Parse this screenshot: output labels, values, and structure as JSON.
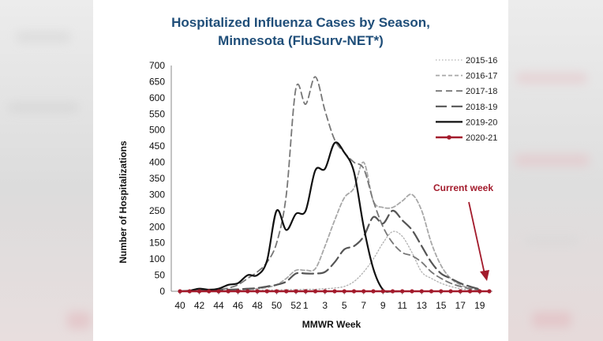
{
  "chart_data": {
    "type": "line",
    "title_line1": "Hospitalized Influenza Cases by Season,",
    "title_line2": "Minnesota (FluSurv-NET*)",
    "xlabel": "MMWR Week",
    "ylabel": "Number of Hospitalizations",
    "ylim": [
      0,
      700
    ],
    "yticks": [
      0,
      50,
      100,
      150,
      200,
      250,
      300,
      350,
      400,
      450,
      500,
      550,
      600,
      650,
      700
    ],
    "xtick_labels": [
      "40",
      "42",
      "44",
      "46",
      "48",
      "50",
      "52",
      "1",
      "3",
      "5",
      "7",
      "9",
      "11",
      "13",
      "15",
      "17",
      "19"
    ],
    "weeks": [
      "40",
      "41",
      "42",
      "43",
      "44",
      "45",
      "46",
      "47",
      "48",
      "49",
      "50",
      "51",
      "52",
      "1",
      "2",
      "3",
      "4",
      "5",
      "6",
      "7",
      "8",
      "9",
      "10",
      "11",
      "12",
      "13",
      "14",
      "15",
      "16",
      "17",
      "18",
      "19",
      "20"
    ],
    "annotation": "Current week",
    "legend_position": "top-right",
    "colors": {
      "title": "#1f4e79",
      "dark_red": "#a31b2c",
      "gray": "#aaaaaa",
      "dark": "#555555",
      "black": "#111111"
    },
    "series": [
      {
        "name": "2015-16",
        "values": [
          0,
          0,
          0,
          1,
          2,
          2,
          3,
          3,
          3,
          4,
          4,
          5,
          5,
          6,
          6,
          8,
          10,
          15,
          30,
          60,
          100,
          150,
          185,
          170,
          120,
          60,
          40,
          25,
          15,
          8,
          4,
          2,
          null
        ]
      },
      {
        "name": "2016-17",
        "values": [
          0,
          0,
          1,
          1,
          2,
          2,
          3,
          5,
          8,
          12,
          20,
          40,
          65,
          65,
          70,
          140,
          220,
          290,
          320,
          400,
          280,
          260,
          260,
          280,
          300,
          250,
          150,
          80,
          40,
          20,
          10,
          5,
          null
        ]
      },
      {
        "name": "2017-18",
        "values": [
          0,
          1,
          2,
          3,
          5,
          10,
          20,
          40,
          60,
          90,
          150,
          300,
          630,
          580,
          665,
          560,
          470,
          430,
          400,
          380,
          280,
          200,
          150,
          120,
          110,
          90,
          60,
          40,
          25,
          15,
          8,
          4,
          null
        ]
      },
      {
        "name": "2018-19",
        "values": [
          0,
          1,
          2,
          3,
          4,
          5,
          6,
          8,
          10,
          15,
          20,
          30,
          55,
          55,
          55,
          60,
          90,
          130,
          140,
          170,
          230,
          210,
          250,
          220,
          190,
          140,
          90,
          55,
          40,
          25,
          15,
          6,
          null
        ]
      },
      {
        "name": "2019-20",
        "values": [
          0,
          2,
          8,
          5,
          8,
          20,
          25,
          50,
          50,
          95,
          250,
          190,
          240,
          250,
          375,
          380,
          460,
          430,
          370,
          200,
          70,
          5,
          0,
          0,
          null,
          null,
          null,
          null,
          null,
          null,
          null,
          null,
          null
        ]
      },
      {
        "name": "2020-21",
        "values": [
          0,
          0,
          0,
          0,
          0,
          0,
          0,
          0,
          0,
          0,
          0,
          0,
          0,
          0,
          0,
          0,
          0,
          0,
          0,
          0,
          0,
          0,
          0,
          0,
          0,
          0,
          0,
          0,
          0,
          0,
          0,
          0,
          0
        ]
      }
    ]
  }
}
